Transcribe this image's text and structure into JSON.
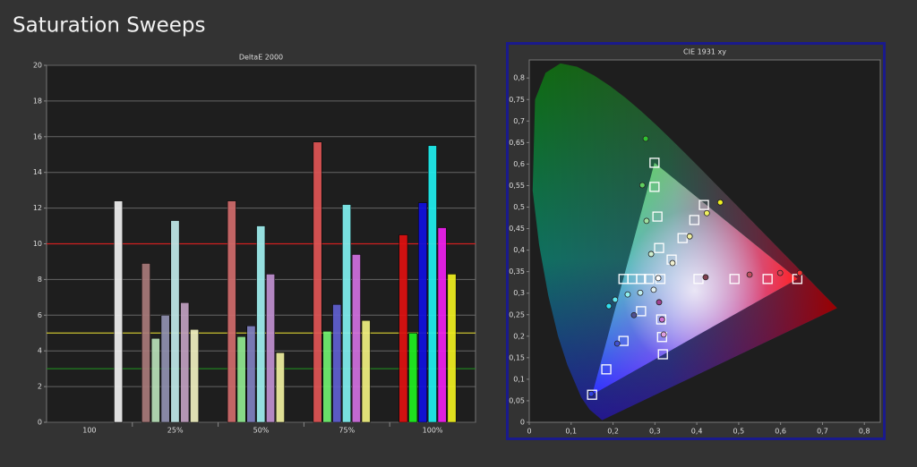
{
  "title": "Saturation Sweeps",
  "chart_data": [
    {
      "type": "bar",
      "title": "DeltaE 2000",
      "categories": [
        "100",
        "25%",
        "50%",
        "75%",
        "100%"
      ],
      "series": [
        {
          "values": [
            null,
            8.9,
            12.4,
            15.7,
            10.5
          ],
          "colors": [
            null,
            "#a87a7a",
            "#d06b6b",
            "#e05555",
            "#e01010"
          ]
        },
        {
          "values": [
            null,
            4.7,
            4.8,
            5.1,
            5.0
          ],
          "colors": [
            null,
            "#b8e0b8",
            "#90e890",
            "#70f070",
            "#20f020"
          ]
        },
        {
          "values": [
            null,
            6.0,
            5.4,
            6.6,
            12.3
          ],
          "colors": [
            null,
            "#9090b0",
            "#8080c0",
            "#6060d0",
            "#1010e0"
          ]
        },
        {
          "values": [
            null,
            11.3,
            11.0,
            12.2,
            15.5
          ],
          "colors": [
            null,
            "#c0e8e8",
            "#a0f0f0",
            "#80f0f0",
            "#20f0f0"
          ]
        },
        {
          "values": [
            null,
            6.7,
            8.3,
            9.4,
            10.9
          ],
          "colors": [
            null,
            "#c0a0c0",
            "#c090d0",
            "#d070e0",
            "#f020f0"
          ]
        },
        {
          "values": [
            null,
            5.2,
            3.9,
            5.7,
            8.3
          ],
          "colors": [
            null,
            "#f0f0c0",
            "#f0f0a0",
            "#f0f080",
            "#f0f020"
          ]
        },
        {
          "values": [
            12.4,
            null,
            null,
            null,
            null
          ],
          "colors": [
            "#f0f0f0",
            null,
            null,
            null,
            null
          ]
        }
      ],
      "reference_lines": [
        {
          "value": 10,
          "color": "#d02020"
        },
        {
          "value": 5,
          "color": "#c8c030"
        },
        {
          "value": 3,
          "color": "#208020"
        }
      ],
      "ylim": [
        0,
        20
      ],
      "yticks": [
        0,
        2,
        4,
        6,
        8,
        10,
        12,
        14,
        16,
        18,
        20
      ],
      "grid": true
    },
    {
      "type": "scatter",
      "title": "CIE 1931 xy",
      "xlim": [
        0,
        0.838
      ],
      "ylim": [
        0,
        0.842
      ],
      "xticks": [
        0,
        {
          "value": 0.1,
          "label": "0,1"
        },
        {
          "value": 0.2,
          "label": "0,2"
        },
        {
          "value": 0.3,
          "label": "0,3"
        },
        {
          "value": 0.4,
          "label": "0,4"
        },
        {
          "value": 0.5,
          "label": "0,5"
        },
        {
          "value": 0.6,
          "label": "0,6"
        },
        {
          "value": 0.7,
          "label": "0,7"
        },
        {
          "value": 0.8,
          "label": "0,8"
        }
      ],
      "yticks": [
        0,
        {
          "value": 0.05,
          "label": "0,05"
        },
        {
          "value": 0.1,
          "label": "0,1"
        },
        {
          "value": 0.15,
          "label": "0,15"
        },
        {
          "value": 0.2,
          "label": "0,2"
        },
        {
          "value": 0.25,
          "label": "0,25"
        },
        {
          "value": 0.3,
          "label": "0,3"
        },
        {
          "value": 0.35,
          "label": "0,35"
        },
        {
          "value": 0.4,
          "label": "0,4"
        },
        {
          "value": 0.45,
          "label": "0,45"
        },
        {
          "value": 0.5,
          "label": "0,5"
        },
        {
          "value": 0.55,
          "label": "0,55"
        },
        {
          "value": 0.6,
          "label": "0,6"
        },
        {
          "value": 0.65,
          "label": "0,65"
        },
        {
          "value": 0.7,
          "label": "0,7"
        },
        {
          "value": 0.75,
          "label": "0,75"
        },
        {
          "value": 0.8,
          "label": "0,8"
        }
      ],
      "grid": false,
      "series": [
        {
          "marker": "square",
          "color": "#ffffff",
          "x": [
            0.15,
            0.184,
            0.225,
            0.267,
            0.313,
            0.225,
            0.246,
            0.267,
            0.286,
            0.299,
            0.299,
            0.306,
            0.31,
            0.417,
            0.394,
            0.366,
            0.34,
            0.64,
            0.569,
            0.49,
            0.404,
            0.319,
            0.317,
            0.315
          ],
          "y": [
            0.064,
            0.123,
            0.189,
            0.258,
            0.333,
            0.333,
            0.333,
            0.333,
            0.333,
            0.603,
            0.547,
            0.478,
            0.405,
            0.505,
            0.47,
            0.428,
            0.378,
            0.333,
            0.333,
            0.333,
            0.333,
            0.158,
            0.198,
            0.239
          ]
        },
        {
          "marker": "circle",
          "x": [
            0.148,
            0.21,
            0.25,
            0.19,
            0.205,
            0.235,
            0.265,
            0.297,
            0.421,
            0.526,
            0.599,
            0.646,
            0.278,
            0.27,
            0.28,
            0.291,
            0.456,
            0.424,
            0.383,
            0.342,
            0.31,
            0.317,
            0.321,
            0.308
          ],
          "y": [
            0.066,
            0.183,
            0.249,
            0.27,
            0.285,
            0.297,
            0.301,
            0.308,
            0.337,
            0.343,
            0.347,
            0.347,
            0.659,
            0.551,
            0.468,
            0.391,
            0.511,
            0.486,
            0.432,
            0.37,
            0.279,
            0.239,
            0.204,
            0.335
          ],
          "colors": [
            "#3040e0",
            "#4050d0",
            "#505090",
            "#30e0f0",
            "#60e8f0",
            "#90f0f0",
            "#c0f0f0",
            "#e0f0f0",
            "#804050",
            "#c05060",
            "#e04050",
            "#f03030",
            "#30c030",
            "#60d060",
            "#a0e0a0",
            "#d0f0d0",
            "#f0f020",
            "#f0f060",
            "#f0f0a0",
            "#f0f0d0",
            "#a04090",
            "#d070d0",
            "#e0a0e0",
            "#ffffff"
          ]
        }
      ]
    }
  ]
}
